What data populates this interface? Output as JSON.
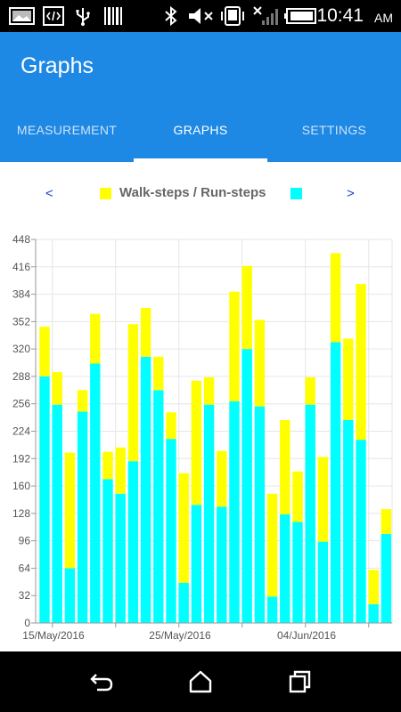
{
  "status_bar": {
    "time": "10:41",
    "ampm": "AM",
    "icons": [
      "photo-icon",
      "code-icon",
      "usb-icon",
      "barcode-icon",
      "bluetooth-icon",
      "mute-icon",
      "vibrate-icon",
      "no-signal-icon",
      "battery-icon"
    ]
  },
  "app_bar": {
    "title": "Graphs",
    "tabs": [
      {
        "label": "MEASUREMENT",
        "active": false
      },
      {
        "label": "GRAPHS",
        "active": true
      },
      {
        "label": "SETTINGS",
        "active": false
      }
    ],
    "color": "#1e88e5"
  },
  "legend": {
    "prev": "<",
    "next": ">",
    "text": "Walk-steps  /  Run-steps",
    "walk_color": "#ffff00",
    "run_color": "#00ffff"
  },
  "chart_data": {
    "type": "bar",
    "stacked": true,
    "ylim": [
      0,
      448
    ],
    "yticks": [
      0,
      32,
      64,
      96,
      128,
      160,
      192,
      224,
      256,
      288,
      320,
      352,
      384,
      416,
      448
    ],
    "xtick_labels": [
      "15/May/2016",
      "25/May/2016",
      "04/Jun/2016"
    ],
    "grid": true,
    "series": [
      {
        "name": "Run-steps",
        "color": "#00ffff",
        "values": [
          288,
          255,
          64,
          247,
          303,
          168,
          151,
          189,
          311,
          272,
          215,
          47,
          138,
          255,
          136,
          259,
          320,
          253,
          31,
          127,
          118,
          255,
          95,
          328,
          237,
          214,
          22,
          104
        ]
      },
      {
        "name": "Walk-steps",
        "color": "#ffff00",
        "values": [
          58,
          38,
          135,
          25,
          58,
          32,
          54,
          160,
          57,
          39,
          31,
          128,
          145,
          32,
          65,
          128,
          97,
          101,
          120,
          110,
          59,
          32,
          99,
          104,
          95,
          182,
          40,
          29
        ]
      }
    ]
  }
}
